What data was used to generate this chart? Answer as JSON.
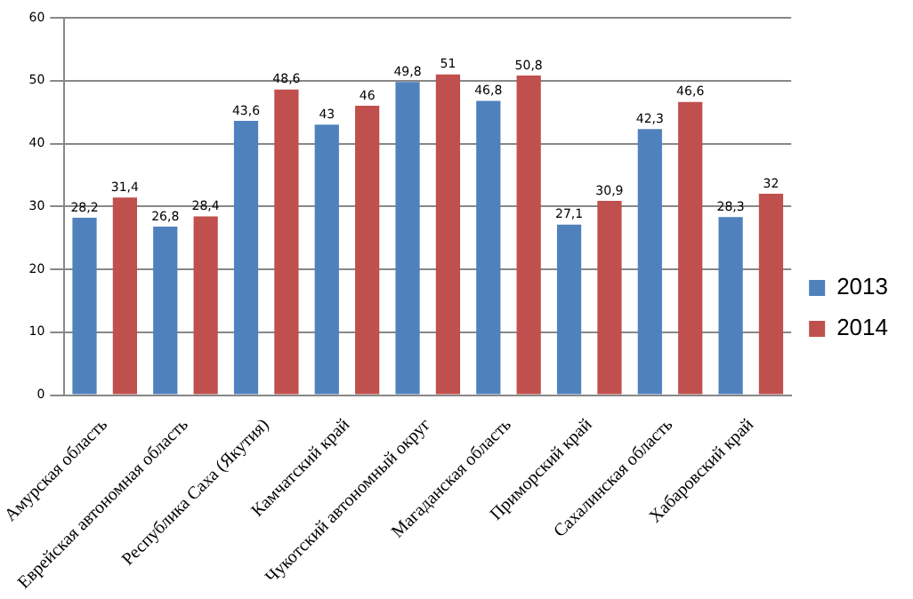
{
  "chart_data": {
    "type": "bar",
    "categories": [
      "Амурская область",
      "Еврейская автономная область",
      "Республика Саха (Якутия)",
      "Камчатский край",
      "Чукотский автономный округ",
      "Магаданская область",
      "Приморский край",
      "Сахалинская область",
      "Хабаровский край"
    ],
    "series": [
      {
        "name": "2013",
        "color": "#4f81bd",
        "values": [
          28.2,
          26.8,
          43.6,
          43,
          49.8,
          46.8,
          27.1,
          42.3,
          28.3
        ],
        "value_labels": [
          "28,2",
          "26,8",
          "43,6",
          "43",
          "49,8",
          "46,8",
          "27,1",
          "42,3",
          "28,3"
        ]
      },
      {
        "name": "2014",
        "color": "#c0504d",
        "values": [
          31.4,
          28.4,
          48.6,
          46,
          51,
          50.8,
          30.9,
          46.6,
          32
        ],
        "value_labels": [
          "31,4",
          "28,4",
          "48,6",
          "46",
          "51",
          "50,8",
          "30,9",
          "46,6",
          "32"
        ]
      }
    ],
    "ylim": [
      0,
      60
    ],
    "yticks": [
      0,
      10,
      20,
      30,
      40,
      50,
      60
    ],
    "grid": "y",
    "legend": "right"
  }
}
